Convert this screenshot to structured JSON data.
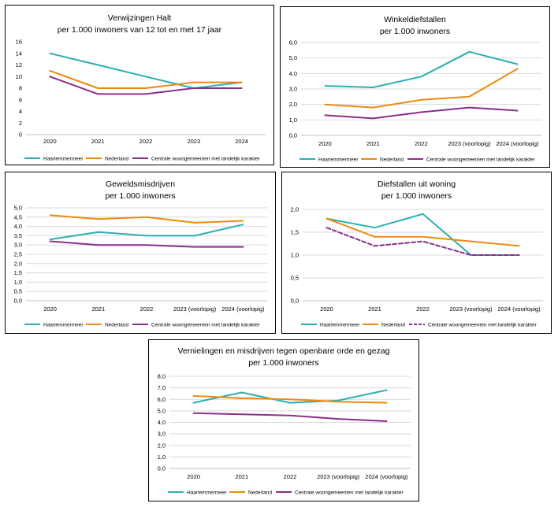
{
  "colors": {
    "haarlemmermeer": "#2BAEB5",
    "nederland": "#EE8A10",
    "centrale": "#8B2F8B",
    "grid": "#D9D9D9"
  },
  "legend_labels": [
    "Haarlemmermeer",
    "Nederland",
    "Centrale woongemeenten met landelijk karakter"
  ],
  "chart_data": [
    {
      "type": "line",
      "title": "Verwijzingen Halt",
      "subtitle": "per 1.000 inwoners van 12 tot en met 17 jaar",
      "categories": [
        "2020",
        "2021",
        "2022",
        "2023",
        "2024"
      ],
      "ylim": [
        0,
        16
      ],
      "yticks": [
        "0",
        "2",
        "4",
        "6",
        "8",
        "10",
        "12",
        "14",
        "16"
      ],
      "grid": false,
      "legend": "bottom",
      "series": [
        {
          "name": "Haarlemmermeer",
          "values": [
            14,
            12,
            10,
            8,
            9
          ]
        },
        {
          "name": "Nederland",
          "values": [
            11,
            8,
            8,
            9,
            9
          ]
        },
        {
          "name": "Centrale woongemeenten met landelijk karakter",
          "values": [
            10,
            7,
            7,
            8,
            8
          ]
        }
      ]
    },
    {
      "type": "line",
      "title": "Winkeldiefstallen",
      "subtitle": "per 1.000 inwoners",
      "categories": [
        "2020",
        "2021",
        "2022",
        "2023 (voorlopig)",
        "2024 (voorlopig)"
      ],
      "ylim": [
        0,
        6
      ],
      "yticks": [
        "0,0",
        "1,0",
        "2,0",
        "3,0",
        "4,0",
        "5,0",
        "6,0"
      ],
      "grid": true,
      "legend": "bottom",
      "series": [
        {
          "name": "Haarlemmermeer",
          "values": [
            3.2,
            3.1,
            3.8,
            5.4,
            4.6
          ]
        },
        {
          "name": "Nederland",
          "values": [
            2.0,
            1.8,
            2.3,
            2.5,
            4.3
          ]
        },
        {
          "name": "Centrale woongemeenten met landelijk karakter",
          "values": [
            1.3,
            1.1,
            1.5,
            1.8,
            1.6
          ]
        }
      ]
    },
    {
      "type": "line",
      "title": "Geweldsmisdrijven",
      "subtitle": "per 1.000 inwoners",
      "categories": [
        "2020",
        "2021",
        "2022",
        "2023 (voorlopig)",
        "2024 (voorlopig)"
      ],
      "ylim": [
        0,
        5
      ],
      "yticks": [
        "0,0",
        "0,5",
        "1,0",
        "1,5",
        "2,0",
        "2,5",
        "3,0",
        "3,5",
        "4,0",
        "4,5",
        "5,0"
      ],
      "grid": true,
      "legend": "bottom",
      "series": [
        {
          "name": "Haarlemmermeer",
          "values": [
            3.3,
            3.7,
            3.5,
            3.5,
            4.1
          ]
        },
        {
          "name": "Nederland",
          "values": [
            4.6,
            4.4,
            4.5,
            4.2,
            4.3
          ]
        },
        {
          "name": "Centrale woongemeenten met landelijk karakter",
          "values": [
            3.2,
            3.0,
            3.0,
            2.9,
            2.9
          ]
        }
      ]
    },
    {
      "type": "line",
      "title": "Diefstallen uit woning",
      "subtitle": "per 1.000 inwoners",
      "categories": [
        "2020",
        "2021",
        "2022",
        "2023 (voorlopig)",
        "2024 (voorlopig)"
      ],
      "ylim": [
        0,
        2
      ],
      "yticks": [
        "0,0",
        "0,5",
        "1,0",
        "1,5",
        "2,0"
      ],
      "grid": true,
      "legend": "bottom",
      "series": [
        {
          "name": "Haarlemmermeer",
          "values": [
            1.8,
            1.6,
            1.9,
            1.0,
            1.0
          ]
        },
        {
          "name": "Nederland",
          "values": [
            1.8,
            1.4,
            1.4,
            1.3,
            1.2
          ]
        },
        {
          "name": "Centrale woongemeenten met landelijk karakter",
          "values": [
            1.6,
            1.2,
            1.3,
            1.0,
            1.0
          ],
          "dashed": true
        }
      ]
    },
    {
      "type": "line",
      "title": "Vernielingen en misdrijven tegen openbare orde en gezag",
      "subtitle": "per 1.000 inwoners",
      "categories": [
        "2020",
        "2021",
        "2022",
        "2023 (voorlopig)",
        "2024 (voorlopig)"
      ],
      "ylim": [
        0,
        8
      ],
      "yticks": [
        "0,0",
        "1,0",
        "2,0",
        "3,0",
        "4,0",
        "5,0",
        "6,0",
        "7,0",
        "8,0"
      ],
      "grid": true,
      "legend": "bottom",
      "series": [
        {
          "name": "Haarlemmermeer",
          "values": [
            5.7,
            6.6,
            5.7,
            5.9,
            6.8
          ]
        },
        {
          "name": "Nederland",
          "values": [
            6.3,
            6.1,
            6.0,
            5.8,
            5.7
          ]
        },
        {
          "name": "Centrale woongemeenten met landelijk karakter",
          "values": [
            4.8,
            4.7,
            4.6,
            4.3,
            4.1
          ]
        }
      ]
    }
  ]
}
